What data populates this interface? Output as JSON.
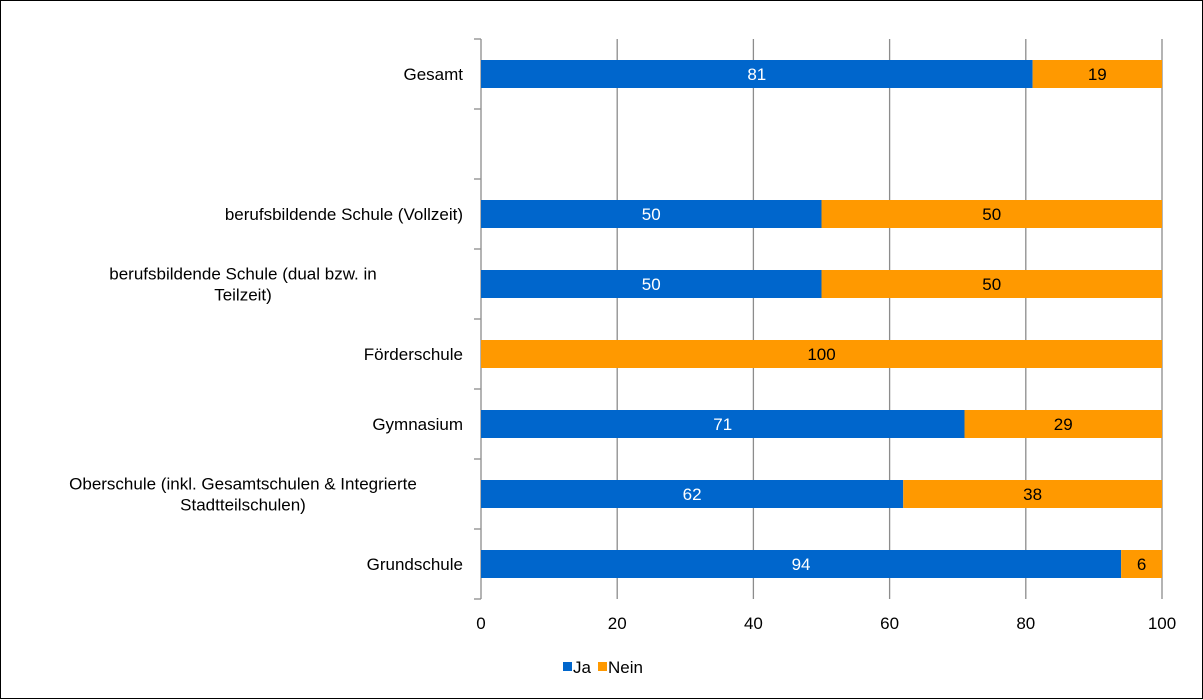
{
  "chart_data": {
    "type": "bar",
    "orientation": "horizontal",
    "stacked": true,
    "title": "",
    "xlabel": "",
    "ylabel": "",
    "categories": [
      "Gesamt",
      "",
      "berufsbildende Schule (Vollzeit)",
      "berufsbildende Schule (dual bzw. in Teilzeit)",
      "Förderschule",
      "Gymnasium",
      "Oberschule (inkl. Gesamtschulen & Integrierte Stadtteilschulen)",
      "Grundschule"
    ],
    "series": [
      {
        "name": "Ja",
        "color": "#0066cc",
        "label_color": "#ffffff",
        "values": [
          81,
          null,
          50,
          50,
          0,
          71,
          62,
          94
        ]
      },
      {
        "name": "Nein",
        "color": "#ff9900",
        "label_color": "#000000",
        "values": [
          19,
          null,
          50,
          50,
          100,
          29,
          38,
          6
        ]
      }
    ],
    "xlim": [
      0,
      100
    ],
    "xticks": [
      0,
      20,
      40,
      60,
      80,
      100
    ],
    "grid": true,
    "legend": "bottom"
  }
}
